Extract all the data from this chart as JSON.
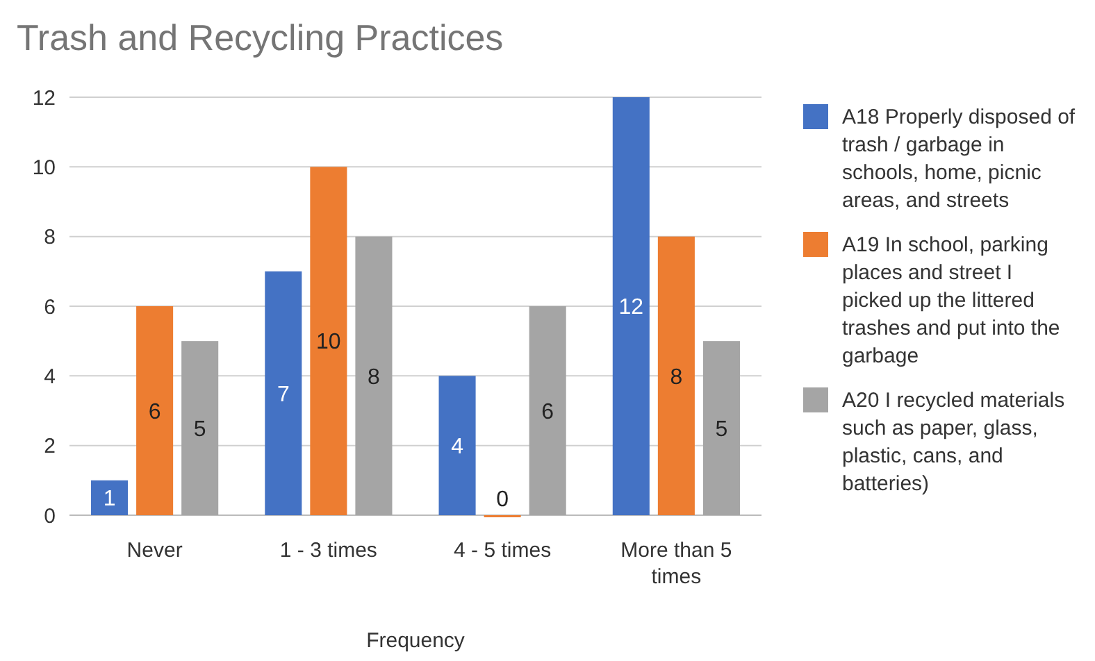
{
  "chart_data": {
    "type": "bar",
    "title": "Trash and Recycling Practices",
    "xlabel": "Frequency",
    "categories": [
      "Never",
      "1 - 3 times",
      "4 - 5 times",
      "More than 5 times"
    ],
    "series": [
      {
        "name": "A18 Properly disposed of trash / garbage in schools, home, picnic areas, and streets",
        "color": "#4472c4",
        "values": [
          1,
          7,
          4,
          12
        ]
      },
      {
        "name": "A19  In school, parking places and street I picked up the littered trashes and put into the garbage",
        "color": "#ed7d31",
        "values": [
          6,
          10,
          0,
          8
        ]
      },
      {
        "name": "A20 I recycled materials such as paper, glass, plastic, cans, and batteries)",
        "color": "#a5a5a5",
        "values": [
          5,
          8,
          6,
          5
        ]
      }
    ],
    "ylim": [
      0,
      12
    ],
    "yticks": [
      0,
      2,
      4,
      6,
      8,
      10,
      12
    ],
    "grid": "y",
    "legend": "right",
    "data_labels": true
  }
}
